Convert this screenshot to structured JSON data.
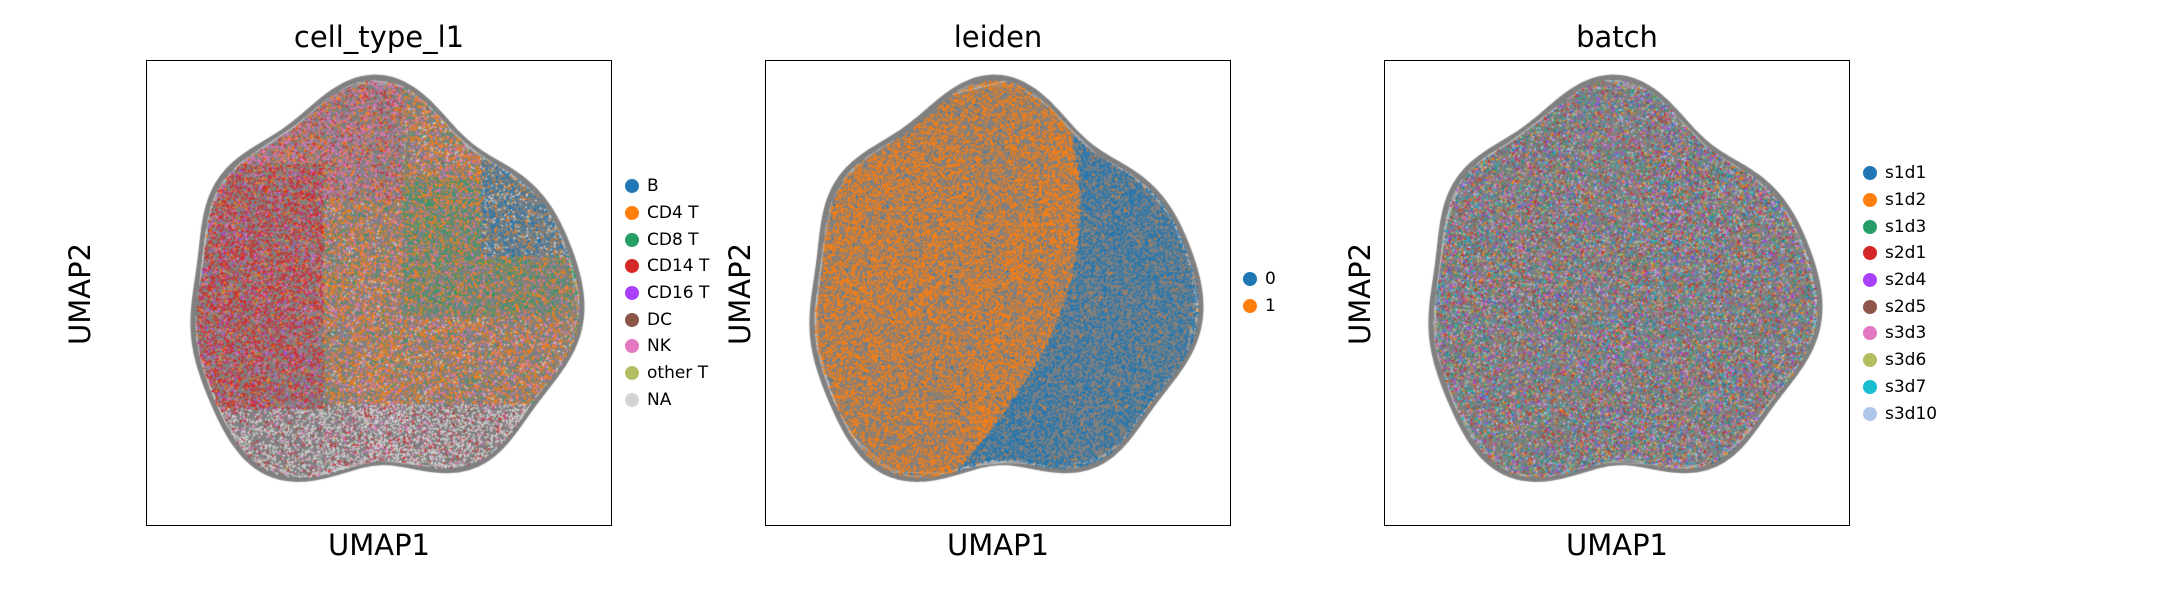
{
  "chart_data": [
    {
      "type": "scatter",
      "title": "cell_type_l1",
      "xlabel": "UMAP1",
      "ylabel": "UMAP2",
      "xticks": [],
      "yticks": [],
      "grid": false,
      "legend_position": "right",
      "legend": [
        {
          "label": "B",
          "color": "#1f77b4"
        },
        {
          "label": "CD4 T",
          "color": "#ff7f0e"
        },
        {
          "label": "CD8 T",
          "color": "#279e68"
        },
        {
          "label": "CD14 T",
          "color": "#d62728"
        },
        {
          "label": "CD16 T",
          "color": "#aa40fc"
        },
        {
          "label": "DC",
          "color": "#8c564b"
        },
        {
          "label": "NK",
          "color": "#e377c2"
        },
        {
          "label": "other T",
          "color": "#b5bd61"
        },
        {
          "label": "NA",
          "color": "#d3d3d3"
        }
      ],
      "background_graph_color": "#808080"
    },
    {
      "type": "scatter",
      "title": "leiden",
      "xlabel": "UMAP1",
      "ylabel": "UMAP2",
      "xticks": [],
      "yticks": [],
      "grid": false,
      "legend_position": "right",
      "legend": [
        {
          "label": "0",
          "color": "#1f77b4"
        },
        {
          "label": "1",
          "color": "#ff7f0e"
        }
      ],
      "background_graph_color": "#808080"
    },
    {
      "type": "scatter",
      "title": "batch",
      "xlabel": "UMAP1",
      "ylabel": "UMAP2",
      "xticks": [],
      "yticks": [],
      "grid": false,
      "legend_position": "right",
      "legend": [
        {
          "label": "s1d1",
          "color": "#1f77b4"
        },
        {
          "label": "s1d2",
          "color": "#ff7f0e"
        },
        {
          "label": "s1d3",
          "color": "#279e68"
        },
        {
          "label": "s2d1",
          "color": "#d62728"
        },
        {
          "label": "s2d4",
          "color": "#aa40fc"
        },
        {
          "label": "s2d5",
          "color": "#8c564b"
        },
        {
          "label": "s3d3",
          "color": "#e377c2"
        },
        {
          "label": "s3d6",
          "color": "#b5bd61"
        },
        {
          "label": "s3d7",
          "color": "#17becf"
        },
        {
          "label": "s3d10",
          "color": "#aec7e8"
        }
      ],
      "background_graph_color": "#808080"
    }
  ]
}
